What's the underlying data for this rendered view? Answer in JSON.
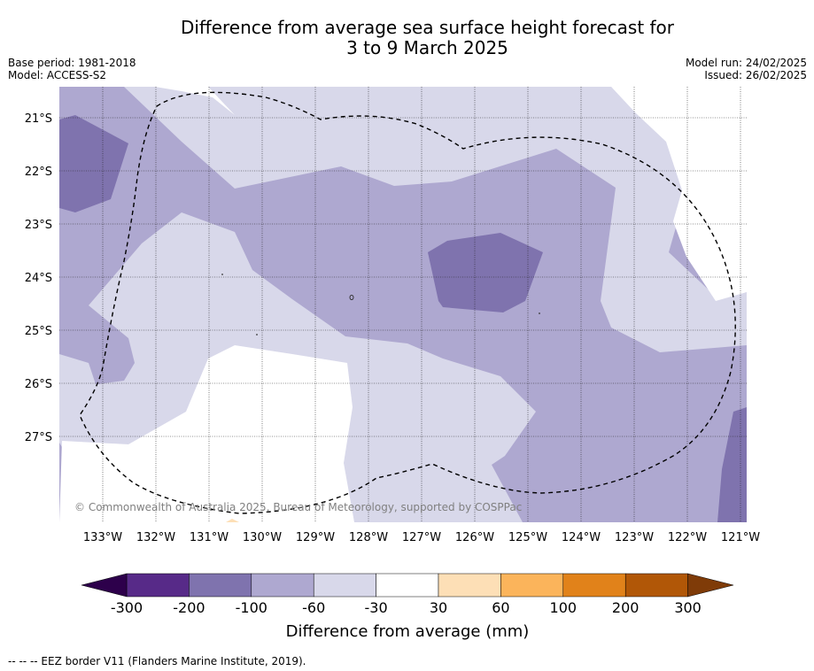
{
  "title": {
    "line1": "Difference from average sea surface height forecast for",
    "line2": "3 to 9 March 2025"
  },
  "meta": {
    "base_period": "Base period: 1981-2018",
    "model": "Model: ACCESS-S2",
    "model_run": "Model run: 24/02/2025",
    "issued": "Issued: 26/02/2025"
  },
  "map": {
    "lat_labels": [
      "21°S",
      "22°S",
      "23°S",
      "24°S",
      "25°S",
      "26°S",
      "27°S"
    ],
    "lon_labels": [
      "133°W",
      "132°W",
      "131°W",
      "130°W",
      "129°W",
      "128°W",
      "127°W",
      "126°W",
      "125°W",
      "124°W",
      "123°W",
      "122°W",
      "121°W"
    ],
    "copyright": "© Commonwealth of Australia 2025, Bureau of Meteorology, supported by COSPPac",
    "colors": {
      "c_m200_m100": "#7f73ae",
      "c_m100_m60": "#aea8d0",
      "c_m60_m30": "#d8d8ea",
      "c_m30_30": "#ffffff",
      "c_30_60": "#fddfb6"
    }
  },
  "colorbar": {
    "title": "Difference from average (mm)",
    "tick_labels": [
      "-300",
      "-200",
      "-100",
      "-60",
      "-30",
      "30",
      "60",
      "100",
      "200",
      "300"
    ],
    "colors": [
      "#572a88",
      "#7f73ae",
      "#aea8d0",
      "#d8d8ea",
      "#ffffff",
      "#fddfb6",
      "#fbb45b",
      "#e1821a",
      "#b15707"
    ],
    "under_color": "#2d004b",
    "over_color": "#7f3b08"
  },
  "footer": {
    "eez_legend": "-- -- -- EEZ border V11 (Flanders Marine Institute, 2019)."
  }
}
